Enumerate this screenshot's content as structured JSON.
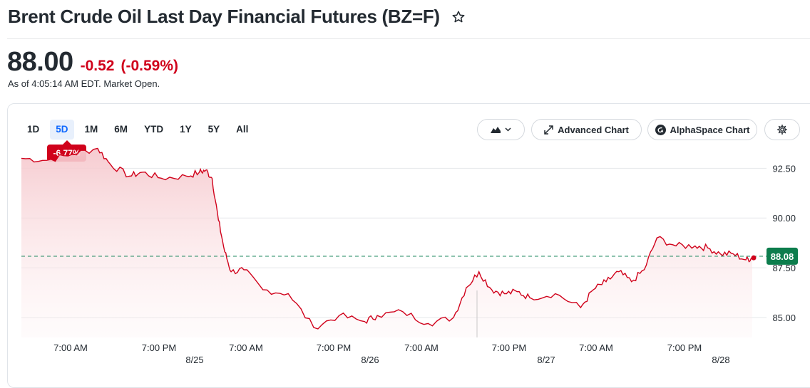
{
  "header": {
    "title": "Brent Crude Oil Last Day Financial Futures (BZ=F)",
    "watchlist_icon": "star-outline-icon"
  },
  "quote": {
    "price": "88.00",
    "change": "-0.52",
    "change_percent": "(-0.59%)",
    "as_of": "As of 4:05:14 AM EDT. Market Open."
  },
  "toolbar": {
    "ranges": [
      "1D",
      "5D",
      "1M",
      "6M",
      "YTD",
      "1Y",
      "5Y",
      "All"
    ],
    "active_range": "5D",
    "range_change_badge": "-6.77%",
    "chart_type_icon": "mountain-chart-icon",
    "advanced_chart_label": "Advanced Chart",
    "alphaspace_chart_label": "AlphaSpace Chart",
    "settings_icon": "gear-icon"
  },
  "colors": {
    "line": "#d0021b",
    "area_fill": "#fbe3e5",
    "negative": "#d0021b",
    "prev_close_dash": "#2b8f69",
    "current_price_tag": "#0d7d4d",
    "active_range_bg": "#e8f0fc",
    "active_range_text": "#0f69ff"
  },
  "chart_data": {
    "type": "area",
    "title": "",
    "xlabel": "",
    "ylabel": "",
    "ylim": [
      84.0,
      93.8
    ],
    "y_ticks": [
      85.0,
      87.5,
      90.0,
      92.5
    ],
    "y_tick_labels": [
      "85.00",
      "87.50",
      "90.00",
      "92.50"
    ],
    "x_tick_labels": [
      "7:00 AM",
      "7:00 PM",
      "7:00 AM",
      "7:00 PM",
      "7:00 AM",
      "7:00 PM",
      "7:00 AM",
      "7:00 PM"
    ],
    "date_labels": [
      "8/25",
      "8/26",
      "8/27",
      "8/28"
    ],
    "hours_since_start_x": [
      0,
      4,
      8,
      12,
      14,
      17,
      19,
      22,
      26,
      28,
      29,
      30,
      31,
      32,
      33,
      35,
      38,
      42,
      46,
      50,
      54,
      56,
      60,
      64,
      68,
      70,
      72,
      74,
      76,
      78,
      80,
      84,
      88,
      90,
      92,
      94,
      96,
      98,
      100,
      103,
      106,
      108,
      110,
      112,
      114,
      115
    ],
    "series": [
      {
        "name": "",
        "values": [
          93.0,
          92.9,
          93.2,
          93.5,
          92.7,
          92.1,
          92.3,
          92.0,
          92.1,
          92.3,
          92.4,
          92.0,
          89.9,
          88.3,
          87.3,
          87.4,
          86.4,
          86.2,
          84.5,
          85.1,
          84.8,
          85.1,
          85.3,
          84.7,
          85.0,
          86.5,
          87.3,
          86.4,
          86.2,
          86.3,
          86.0,
          86.2,
          85.5,
          86.4,
          86.8,
          87.3,
          86.8,
          87.4,
          89.0,
          88.6,
          88.6,
          88.5,
          88.2,
          88.2,
          87.9,
          88.0
        ]
      }
    ],
    "reference_line": 88.08,
    "reference_label": "88.08",
    "grid": true,
    "legend": "none"
  }
}
